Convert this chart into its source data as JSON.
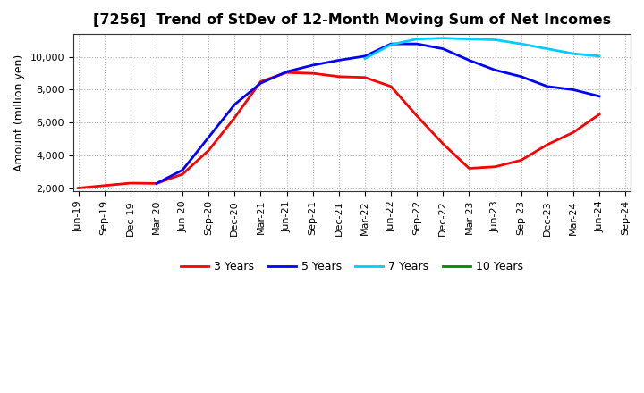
{
  "title": "[7256]  Trend of StDev of 12-Month Moving Sum of Net Incomes",
  "ylabel": "Amount (million yen)",
  "background_color": "#ffffff",
  "plot_bg_color": "#ffffff",
  "grid_color": "#aaaaaa",
  "title_fontsize": 11.5,
  "label_fontsize": 9,
  "tick_fontsize": 8,
  "ylim": [
    1800,
    11400
  ],
  "yticks": [
    2000,
    4000,
    6000,
    8000,
    10000
  ],
  "series": {
    "3 Years": {
      "color": "#ff0000",
      "linewidth": 2.0,
      "data": [
        [
          "Jun-19",
          2000
        ],
        [
          "Sep-19",
          2150
        ],
        [
          "Dec-19",
          2300
        ],
        [
          "Mar-20",
          2280
        ],
        [
          "Jun-20",
          2850
        ],
        [
          "Sep-20",
          4300
        ],
        [
          "Dec-20",
          6300
        ],
        [
          "Mar-21",
          8500
        ],
        [
          "Jun-21",
          9050
        ],
        [
          "Sep-21",
          9000
        ],
        [
          "Dec-21",
          8800
        ],
        [
          "Mar-22",
          8750
        ],
        [
          "Jun-22",
          8200
        ],
        [
          "Sep-22",
          6400
        ],
        [
          "Dec-22",
          4700
        ],
        [
          "Mar-23",
          3200
        ],
        [
          "Jun-23",
          3300
        ],
        [
          "Sep-23",
          3700
        ],
        [
          "Dec-23",
          4650
        ],
        [
          "Mar-24",
          5400
        ],
        [
          "Jun-24",
          6500
        ]
      ]
    },
    "5 Years": {
      "color": "#0000ff",
      "linewidth": 2.0,
      "data": [
        [
          "Mar-20",
          2280
        ],
        [
          "Jun-20",
          3100
        ],
        [
          "Sep-20",
          5100
        ],
        [
          "Dec-20",
          7100
        ],
        [
          "Mar-21",
          8400
        ],
        [
          "Jun-21",
          9100
        ],
        [
          "Sep-21",
          9500
        ],
        [
          "Dec-21",
          9800
        ],
        [
          "Mar-22",
          10050
        ],
        [
          "Jun-22",
          10800
        ],
        [
          "Sep-22",
          10800
        ],
        [
          "Dec-22",
          10500
        ],
        [
          "Mar-23",
          9800
        ],
        [
          "Jun-23",
          9200
        ],
        [
          "Sep-23",
          8800
        ],
        [
          "Dec-23",
          8200
        ],
        [
          "Mar-24",
          8000
        ],
        [
          "Jun-24",
          7600
        ]
      ]
    },
    "7 Years": {
      "color": "#00ccff",
      "linewidth": 2.0,
      "data": [
        [
          "Mar-22",
          9900
        ],
        [
          "Jun-22",
          10750
        ],
        [
          "Sep-22",
          11100
        ],
        [
          "Dec-22",
          11150
        ],
        [
          "Mar-23",
          11100
        ],
        [
          "Jun-23",
          11050
        ],
        [
          "Sep-23",
          10800
        ],
        [
          "Dec-23",
          10500
        ],
        [
          "Mar-24",
          10200
        ],
        [
          "Jun-24",
          10050
        ]
      ]
    },
    "10 Years": {
      "color": "#008800",
      "linewidth": 2.0,
      "data": []
    }
  },
  "xtick_labels": [
    "Jun-19",
    "Sep-19",
    "Dec-19",
    "Mar-20",
    "Jun-20",
    "Sep-20",
    "Dec-20",
    "Mar-21",
    "Jun-21",
    "Sep-21",
    "Dec-21",
    "Mar-22",
    "Jun-22",
    "Sep-22",
    "Dec-22",
    "Mar-23",
    "Jun-23",
    "Sep-23",
    "Dec-23",
    "Mar-24",
    "Jun-24",
    "Sep-24"
  ],
  "legend_order": [
    "3 Years",
    "5 Years",
    "7 Years",
    "10 Years"
  ]
}
